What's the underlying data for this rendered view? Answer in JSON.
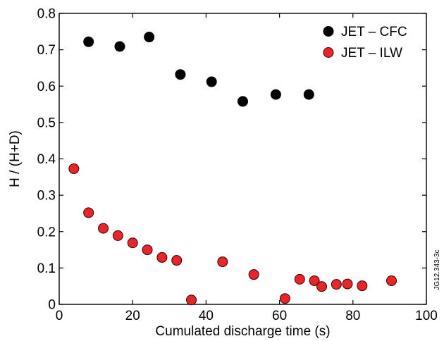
{
  "chart_data": {
    "type": "scatter",
    "xlabel": "Cumulated discharge time (s)",
    "ylabel": "H / (H+D)",
    "xlim": [
      0,
      100
    ],
    "ylim": [
      0,
      0.8
    ],
    "x_ticks": [
      0,
      20,
      40,
      60,
      80,
      100
    ],
    "x_tick_labels": [
      "0",
      "20",
      "40",
      "60",
      "80",
      "100"
    ],
    "y_ticks": [
      0,
      0.1,
      0.2,
      0.3,
      0.4,
      0.5,
      0.6,
      0.7,
      0.8
    ],
    "y_tick_labels": [
      "0",
      "0.1",
      "0.2",
      "0.3",
      "0.4",
      "0.5",
      "0.6",
      "0.7",
      "0.8"
    ],
    "grid": false,
    "legend_position": "top-right",
    "series": [
      {
        "name": "JET – CFC",
        "color": "#000000",
        "points": [
          {
            "x": 8,
            "y": 0.722
          },
          {
            "x": 16.5,
            "y": 0.709
          },
          {
            "x": 24.5,
            "y": 0.735
          },
          {
            "x": 33,
            "y": 0.632
          },
          {
            "x": 41.5,
            "y": 0.612
          },
          {
            "x": 50,
            "y": 0.558
          },
          {
            "x": 59,
            "y": 0.577
          },
          {
            "x": 68,
            "y": 0.577
          }
        ]
      },
      {
        "name": "JET – ILW",
        "color": "#e8262a",
        "points": [
          {
            "x": 4,
            "y": 0.373
          },
          {
            "x": 8,
            "y": 0.252
          },
          {
            "x": 12,
            "y": 0.209
          },
          {
            "x": 16,
            "y": 0.189
          },
          {
            "x": 20,
            "y": 0.169
          },
          {
            "x": 24,
            "y": 0.15
          },
          {
            "x": 28,
            "y": 0.129
          },
          {
            "x": 32,
            "y": 0.121
          },
          {
            "x": 36,
            "y": 0.012
          },
          {
            "x": 44.5,
            "y": 0.117
          },
          {
            "x": 53,
            "y": 0.082
          },
          {
            "x": 61.5,
            "y": 0.016
          },
          {
            "x": 65.5,
            "y": 0.069
          },
          {
            "x": 69.5,
            "y": 0.065
          },
          {
            "x": 71.5,
            "y": 0.049
          },
          {
            "x": 75.5,
            "y": 0.055
          },
          {
            "x": 78.5,
            "y": 0.056
          },
          {
            "x": 82.5,
            "y": 0.051
          },
          {
            "x": 90.5,
            "y": 0.065
          }
        ]
      }
    ],
    "annotation": "JG12.343-3c"
  }
}
